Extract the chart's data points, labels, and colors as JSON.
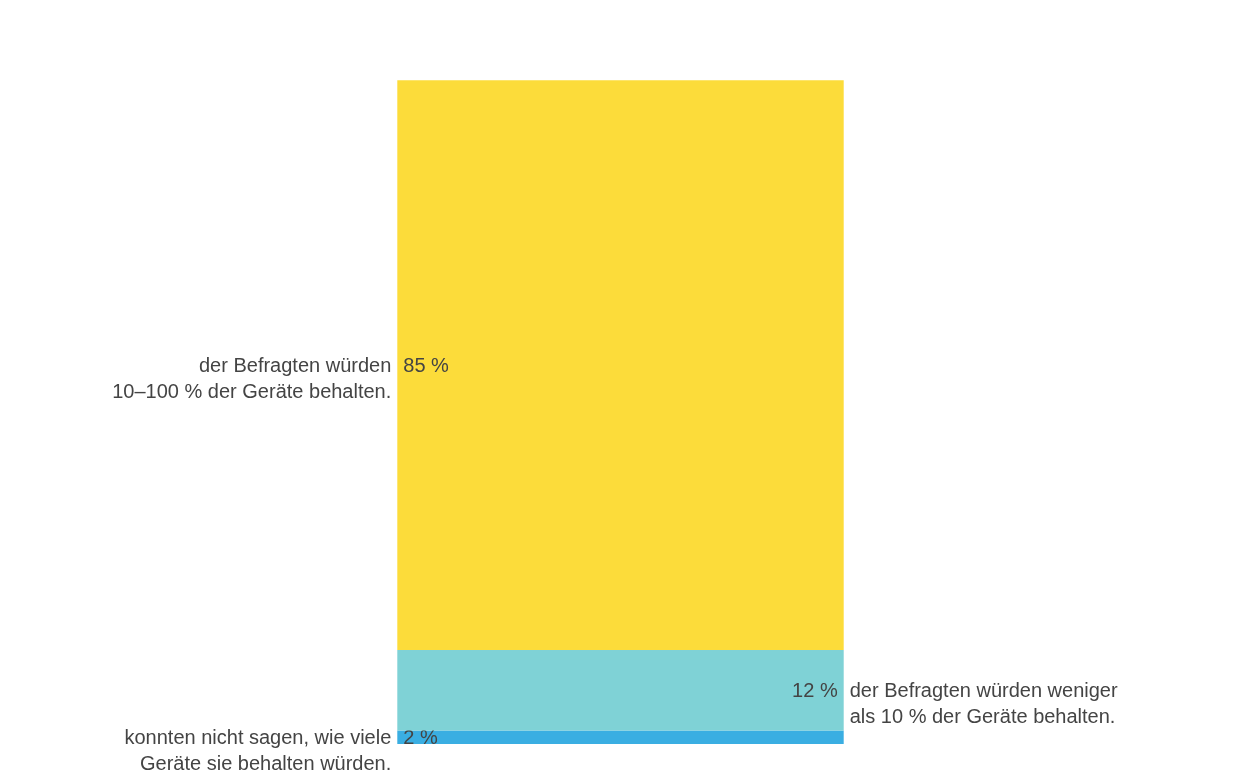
{
  "chart_data": {
    "type": "bar",
    "stacked": true,
    "categories": [
      null
    ],
    "series": [
      {
        "name": "konnten nicht sagen, wie viele\nGeräte sie behalten würden.",
        "color": "#3aaee2",
        "values": [
          2
        ],
        "value_labels": [
          "2 %"
        ]
      },
      {
        "name": "der Befragten würden weniger\nals 10 % der Geräte behalten.",
        "color": "#7fd2d6",
        "values": [
          12
        ],
        "value_labels": [
          "12 %"
        ]
      },
      {
        "name": "der Befragten würden\n10–100 % der Geräte behalten.",
        "color": "#fcdc3a",
        "values": [
          85
        ],
        "value_labels": [
          "85 %"
        ]
      }
    ]
  }
}
